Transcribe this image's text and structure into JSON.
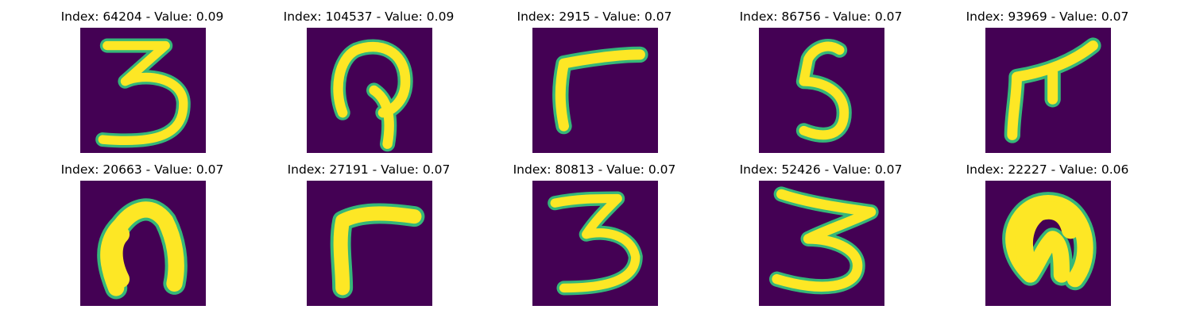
{
  "panels": [
    {
      "title": "Index: 64204 - Value: 0.09",
      "digit": "3-curvy"
    },
    {
      "title": "Index: 104537 - Value: 0.09",
      "digit": "loop"
    },
    {
      "title": "Index: 2915 - Value: 0.07",
      "digit": "corner"
    },
    {
      "title": "Index: 86756 - Value: 0.07",
      "digit": "5"
    },
    {
      "title": "Index: 93969 - Value: 0.07",
      "digit": "forked"
    },
    {
      "title": "Index: 20663 - Value: 0.07",
      "digit": "arch-thick"
    },
    {
      "title": "Index: 27191 - Value: 0.07",
      "digit": "corner-thick"
    },
    {
      "title": "Index: 80813 - Value: 0.07",
      "digit": "3"
    },
    {
      "title": "Index: 52426 - Value: 0.07",
      "digit": "3-wide"
    },
    {
      "title": "Index: 22227 - Value: 0.06",
      "digit": "arch-blob"
    }
  ],
  "colors": {
    "background": "#440154",
    "stroke": "#fde725",
    "edge": "#35b779"
  }
}
